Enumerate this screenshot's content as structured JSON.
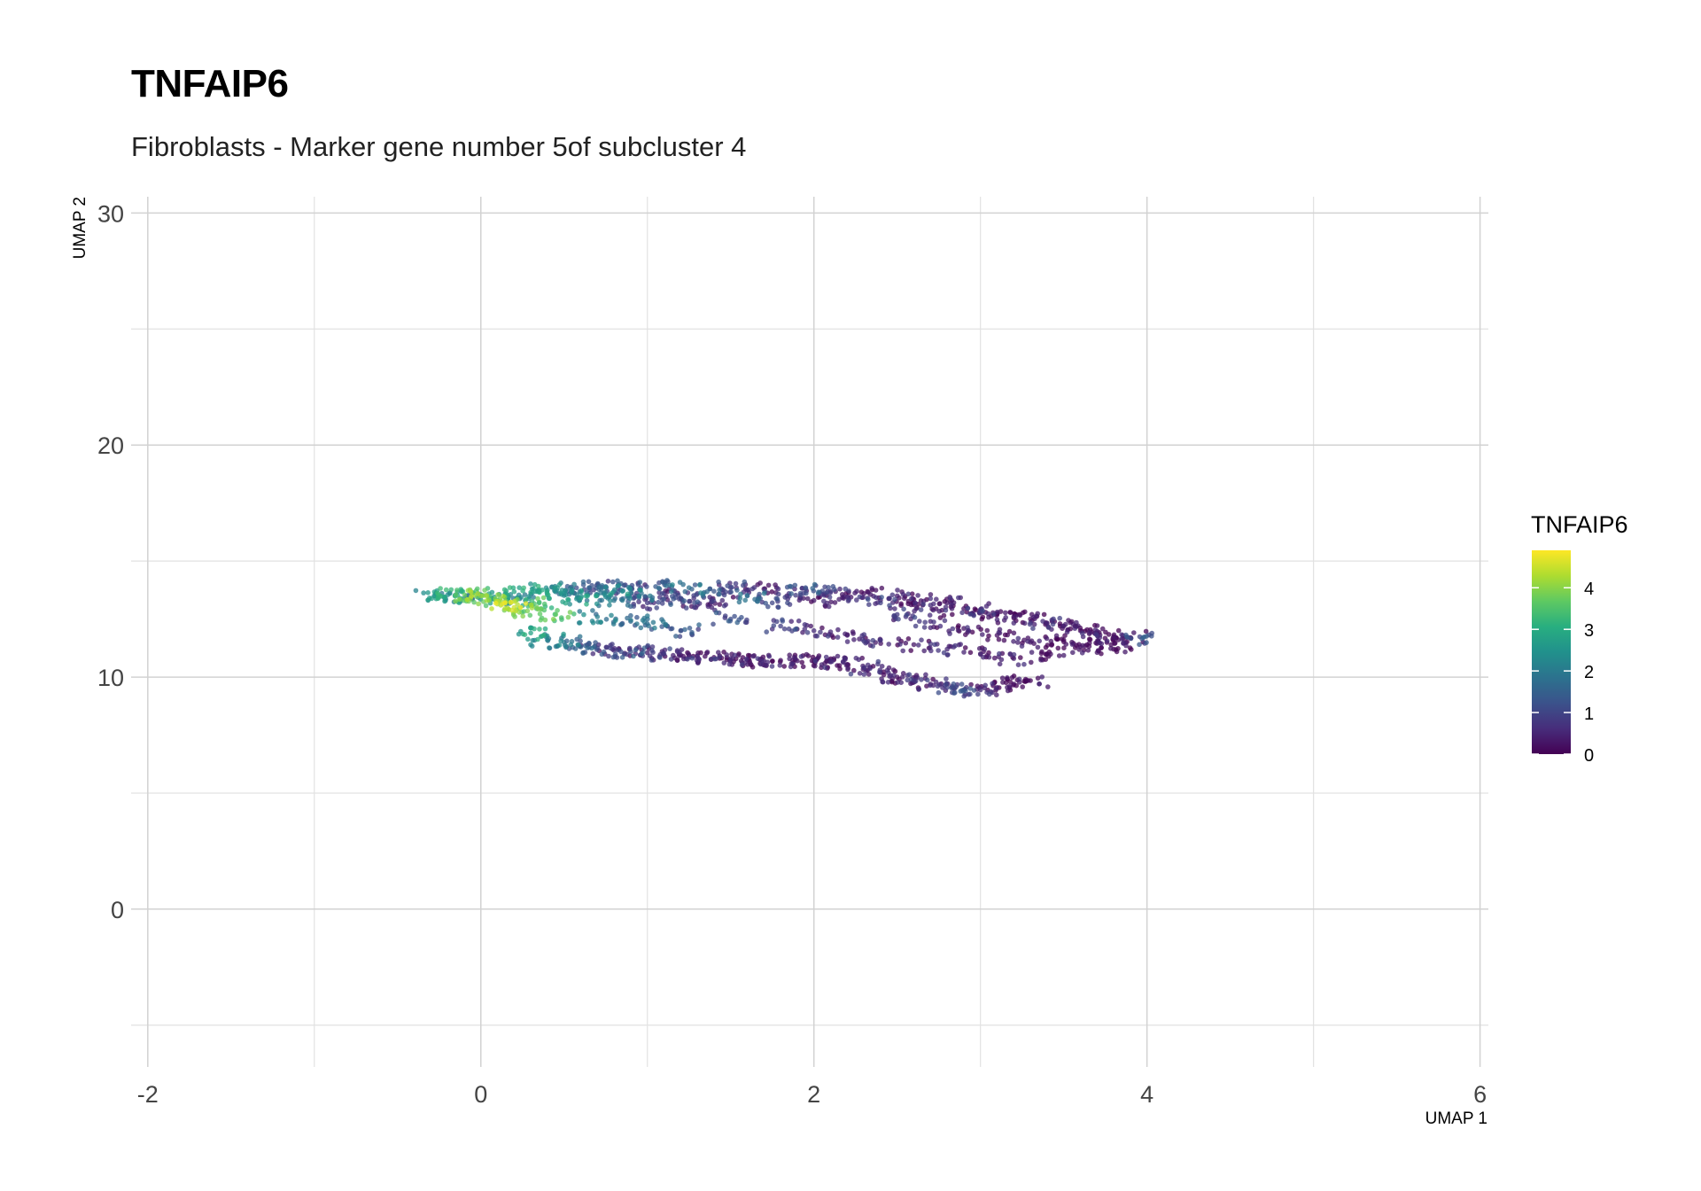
{
  "title": "TNFAIP6",
  "subtitle": "Fibroblasts - Marker gene number 5of subcluster 4",
  "chart_data": {
    "type": "scatter",
    "xlabel": "UMAP 1",
    "ylabel": "UMAP 2",
    "xlim": [
      -2.1,
      6.05
    ],
    "ylim": [
      -6.8,
      30.7
    ],
    "x_ticks": [
      -2,
      0,
      2,
      4,
      6
    ],
    "x_tick_labels": [
      "-2",
      "0",
      "2",
      "4",
      "6"
    ],
    "y_ticks": [
      0,
      10,
      20,
      30
    ],
    "y_tick_labels": [
      "0",
      "10",
      "20",
      "30"
    ],
    "grid": true,
    "legend": {
      "title": "TNFAIP6",
      "placement": "right",
      "type": "colorbar",
      "colormap": "viridis",
      "min": 0,
      "max": 4.9,
      "ticks": [
        0,
        1,
        2,
        3,
        4
      ],
      "tick_labels": [
        "0",
        "1",
        "2",
        "3",
        "4"
      ]
    },
    "point_color_low": "#440154",
    "point_color_high": "#fde725",
    "cluster_description": "cells spanning UMAP 1 from about -0.3 to 4.0 and UMAP 2 from about 9.4 to 13.9; high expression at the left end",
    "points": [
      [
        -0.28,
        13.5,
        2.4
      ],
      [
        -0.22,
        13.45,
        2.8
      ],
      [
        -0.15,
        13.55,
        3.6
      ],
      [
        -0.1,
        13.4,
        2.1
      ],
      [
        -0.05,
        13.6,
        3.2
      ],
      [
        0.0,
        13.5,
        4.1
      ],
      [
        0.05,
        13.3,
        3.8
      ],
      [
        0.08,
        13.45,
        2.6
      ],
      [
        0.12,
        13.1,
        4.3
      ],
      [
        0.15,
        13.6,
        3.0
      ],
      [
        0.2,
        13.0,
        4.5
      ],
      [
        0.22,
        13.4,
        2.2
      ],
      [
        0.28,
        12.85,
        3.9
      ],
      [
        0.3,
        13.65,
        2.9
      ],
      [
        0.35,
        13.2,
        3.4
      ],
      [
        0.4,
        13.75,
        2.5
      ],
      [
        0.45,
        12.7,
        3.7
      ],
      [
        0.5,
        13.6,
        2.3
      ],
      [
        0.55,
        13.8,
        1.8
      ],
      [
        0.6,
        13.4,
        2.7
      ],
      [
        0.65,
        13.85,
        1.5
      ],
      [
        0.7,
        13.55,
        2.0
      ],
      [
        0.75,
        13.9,
        1.2
      ],
      [
        0.8,
        13.3,
        1.9
      ],
      [
        0.85,
        13.7,
        2.4
      ],
      [
        0.9,
        13.85,
        0.9
      ],
      [
        0.95,
        13.5,
        1.6
      ],
      [
        1.0,
        13.2,
        0.8
      ],
      [
        1.05,
        13.9,
        1.4
      ],
      [
        1.1,
        13.6,
        0.7
      ],
      [
        1.2,
        13.4,
        1.1
      ],
      [
        1.25,
        13.85,
        1.8
      ],
      [
        1.3,
        13.1,
        0.6
      ],
      [
        1.4,
        13.7,
        1.3
      ],
      [
        1.45,
        13.3,
        0.5
      ],
      [
        1.5,
        13.85,
        0.9
      ],
      [
        1.6,
        13.5,
        1.6
      ],
      [
        1.7,
        13.8,
        0.4
      ],
      [
        1.75,
        13.2,
        1.0
      ],
      [
        1.85,
        13.6,
        0.7
      ],
      [
        1.95,
        13.85,
        1.2
      ],
      [
        2.0,
        13.3,
        0.3
      ],
      [
        2.1,
        13.7,
        0.8
      ],
      [
        2.2,
        13.45,
        0.5
      ],
      [
        2.3,
        13.6,
        0.2
      ],
      [
        2.4,
        13.2,
        0.9
      ],
      [
        2.5,
        13.5,
        0.4
      ],
      [
        2.6,
        13.35,
        0.1
      ],
      [
        2.7,
        13.1,
        0.6
      ],
      [
        2.8,
        13.2,
        0.3
      ],
      [
        2.9,
        12.95,
        0.2
      ],
      [
        3.0,
        12.9,
        0.7
      ],
      [
        3.1,
        12.75,
        0.1
      ],
      [
        3.2,
        12.6,
        0.3
      ],
      [
        3.3,
        12.5,
        0.2
      ],
      [
        3.4,
        12.3,
        0.5
      ],
      [
        3.5,
        12.2,
        0.1
      ],
      [
        3.6,
        12.0,
        0.2
      ],
      [
        3.7,
        11.9,
        0.4
      ],
      [
        3.8,
        11.75,
        0.1
      ],
      [
        3.9,
        11.7,
        0.3
      ],
      [
        3.97,
        11.65,
        1.3
      ],
      [
        0.3,
        11.9,
        2.8
      ],
      [
        0.4,
        11.6,
        2.2
      ],
      [
        0.5,
        11.5,
        1.9
      ],
      [
        0.6,
        11.3,
        1.5
      ],
      [
        0.7,
        11.25,
        1.0
      ],
      [
        0.8,
        11.15,
        0.7
      ],
      [
        0.9,
        11.1,
        1.2
      ],
      [
        1.0,
        11.05,
        0.4
      ],
      [
        1.1,
        11.0,
        0.8
      ],
      [
        1.2,
        10.95,
        0.3
      ],
      [
        1.3,
        10.9,
        0.6
      ],
      [
        1.4,
        10.85,
        0.2
      ],
      [
        1.5,
        10.8,
        0.5
      ],
      [
        1.6,
        10.75,
        0.1
      ],
      [
        1.7,
        10.7,
        0.4
      ],
      [
        1.8,
        10.72,
        0.2
      ],
      [
        1.9,
        10.7,
        0.3
      ],
      [
        2.0,
        10.68,
        0.1
      ],
      [
        2.1,
        10.65,
        0.5
      ],
      [
        2.2,
        10.55,
        0.2
      ],
      [
        2.3,
        10.4,
        0.6
      ],
      [
        2.4,
        10.2,
        0.3
      ],
      [
        2.5,
        10.0,
        0.2
      ],
      [
        2.6,
        9.85,
        0.7
      ],
      [
        2.7,
        9.7,
        0.4
      ],
      [
        2.8,
        9.55,
        0.9
      ],
      [
        2.9,
        9.45,
        1.1
      ],
      [
        3.0,
        9.45,
        0.6
      ],
      [
        3.1,
        9.55,
        0.3
      ],
      [
        3.2,
        9.7,
        0.2
      ],
      [
        3.3,
        9.85,
        0.1
      ],
      [
        1.5,
        12.5,
        1.1
      ],
      [
        1.8,
        12.2,
        0.9
      ],
      [
        2.0,
        12.0,
        0.6
      ],
      [
        2.2,
        11.8,
        0.4
      ],
      [
        2.4,
        11.6,
        0.7
      ],
      [
        2.6,
        11.4,
        0.3
      ],
      [
        2.8,
        11.2,
        0.5
      ],
      [
        3.0,
        11.0,
        0.2
      ],
      [
        3.2,
        10.8,
        0.4
      ],
      [
        3.4,
        11.0,
        0.1
      ],
      [
        3.6,
        11.3,
        0.2
      ],
      [
        3.8,
        11.2,
        0.1
      ],
      [
        1.0,
        12.3,
        1.7
      ],
      [
        1.2,
        12.0,
        1.3
      ],
      [
        0.7,
        12.6,
        2.1
      ],
      [
        0.9,
        12.4,
        1.6
      ],
      [
        2.5,
        12.7,
        0.8
      ],
      [
        2.7,
        12.4,
        0.5
      ],
      [
        2.9,
        12.1,
        0.3
      ],
      [
        3.1,
        11.8,
        0.2
      ],
      [
        3.3,
        11.5,
        0.3
      ],
      [
        3.5,
        11.6,
        0.1
      ],
      [
        3.7,
        11.45,
        0.2
      ]
    ]
  }
}
